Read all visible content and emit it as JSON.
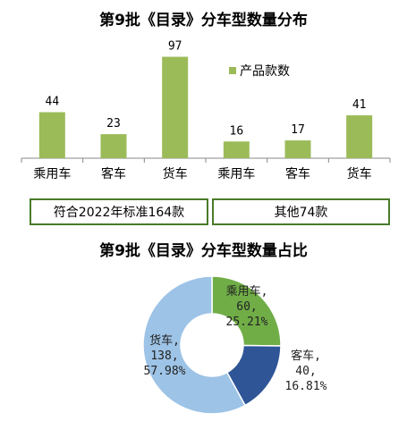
{
  "colors": {
    "bar": "#9bbb59",
    "pie_passenger": "#70ad47",
    "pie_bus": "#2f5597",
    "pie_truck": "#9dc3e6",
    "group_border": "#4a7a2a"
  },
  "chart_data": [
    {
      "type": "bar",
      "title": "第9批《目录》分车型数量分布",
      "categories": [
        "乘用车",
        "客车",
        "货车",
        "乘用车",
        "客车",
        "货车"
      ],
      "series": [
        {
          "name": "产品款数",
          "values": [
            44,
            23,
            97,
            16,
            17,
            41
          ]
        }
      ],
      "groups": [
        {
          "label": "符合2022年标准164款",
          "span": [
            0,
            2
          ]
        },
        {
          "label": "其他74款",
          "span": [
            3,
            5
          ]
        }
      ],
      "ylim": [
        0,
        100
      ],
      "grid": false,
      "legend": "top-right"
    },
    {
      "type": "pie",
      "title": "第9批《目录》分车型数量占比",
      "slices": [
        {
          "name": "乘用车",
          "value": 60,
          "percent": "25.21%"
        },
        {
          "name": "客车",
          "value": 40,
          "percent": "16.81%"
        },
        {
          "name": "货车",
          "value": 138,
          "percent": "57.98%"
        }
      ]
    }
  ]
}
